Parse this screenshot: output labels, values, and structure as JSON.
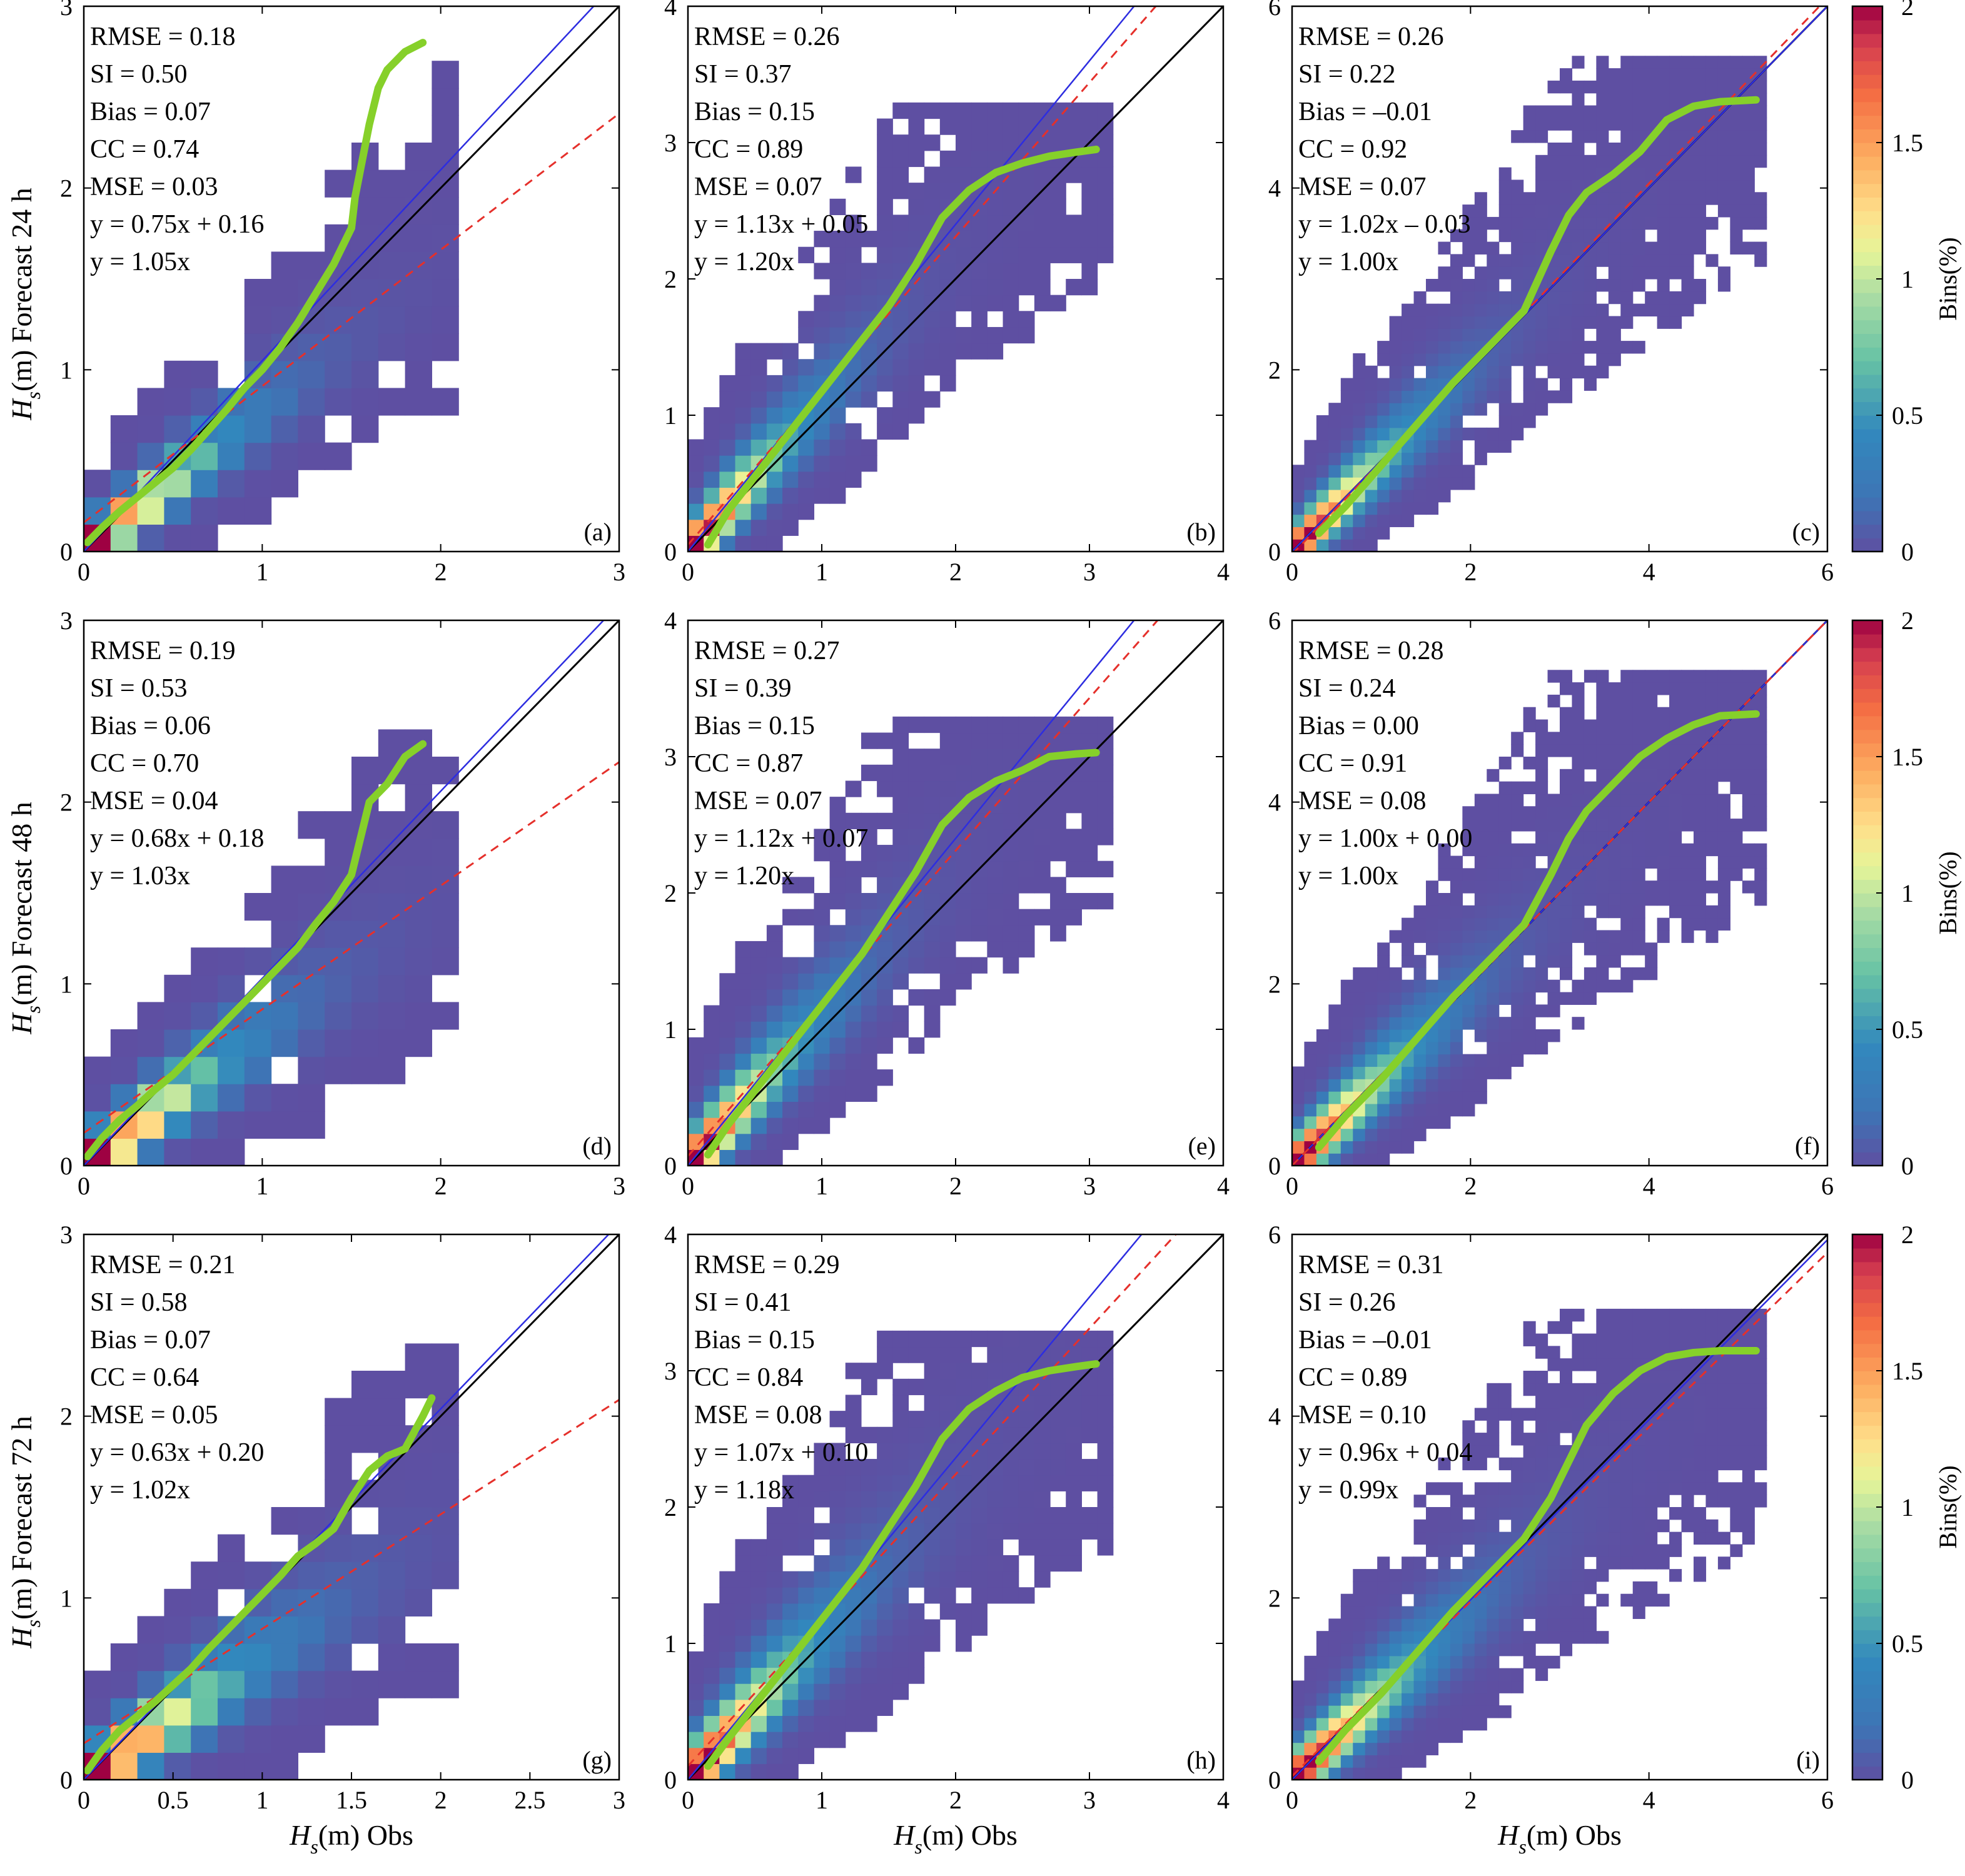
{
  "figure": {
    "xlabel_main": "H",
    "xlabel_sub": "s",
    "xlabel_rest": "(m)  Obs",
    "ylabel_main": "H",
    "ylabel_sub": "s",
    "ylabel_unit": "(m)",
    "colorbar_label": "Bins(%)"
  },
  "chart_data": [
    {
      "type": "heatmap",
      "id": "a",
      "panel_label": "(a)",
      "row_label": "Forecast 24 h",
      "xlim": [
        0,
        3
      ],
      "ylim": [
        0,
        3
      ],
      "xticks": [
        "0",
        "1",
        "2",
        "3"
      ],
      "yticks": [
        "0",
        "1",
        "2",
        "3"
      ],
      "stats": [
        "RMSE = 0.18",
        "SI = 0.50",
        "Bias = 0.07",
        "CC = 0.74",
        "MSE = 0.03",
        "y = 0.75x + 0.16",
        "y = 1.05x"
      ],
      "fit": {
        "slope": 0.75,
        "intercept": 0.16
      },
      "fit_origin": {
        "slope": 1.05
      },
      "reference_slope": 0.8,
      "qq": {
        "x": [
          0.02,
          0.1,
          0.2,
          0.3,
          0.4,
          0.5,
          0.6,
          0.7,
          0.8,
          0.9,
          1.0,
          1.1,
          1.2,
          1.3,
          1.4,
          1.45,
          1.5,
          1.52,
          1.55,
          1.6,
          1.65,
          1.7,
          1.8,
          1.9
        ],
        "y": [
          0.05,
          0.13,
          0.22,
          0.3,
          0.38,
          0.46,
          0.56,
          0.67,
          0.78,
          0.9,
          1.0,
          1.12,
          1.26,
          1.42,
          1.58,
          1.68,
          1.78,
          1.95,
          2.1,
          2.35,
          2.55,
          2.65,
          2.75,
          2.8
        ]
      },
      "cloud": {
        "sx": 0.32,
        "sy": 0.26,
        "tail_x": 2.0,
        "tail_y": 2.6,
        "bins": 20
      }
    },
    {
      "type": "heatmap",
      "id": "b",
      "panel_label": "(b)",
      "row_label": "",
      "xlim": [
        0,
        4
      ],
      "ylim": [
        0,
        4
      ],
      "xticks": [
        "0",
        "1",
        "2",
        "3",
        "4"
      ],
      "yticks": [
        "0",
        "1",
        "2",
        "3",
        "4"
      ],
      "stats": [
        "RMSE = 0.26",
        "SI = 0.37",
        "Bias = 0.15",
        "CC = 0.89",
        "MSE = 0.07",
        "y = 1.13x + 0.05",
        "y = 1.20x"
      ],
      "fit": {
        "slope": 1.13,
        "intercept": 0.05
      },
      "fit_origin": {
        "slope": 1.2
      },
      "reference_slope": 1.15,
      "qq": {
        "x": [
          0.15,
          0.3,
          0.5,
          0.7,
          0.9,
          1.1,
          1.3,
          1.5,
          1.7,
          1.9,
          2.1,
          2.3,
          2.5,
          2.7,
          2.9,
          3.05
        ],
        "y": [
          0.05,
          0.3,
          0.55,
          0.8,
          1.05,
          1.3,
          1.55,
          1.8,
          2.1,
          2.45,
          2.65,
          2.78,
          2.85,
          2.9,
          2.93,
          2.95
        ]
      },
      "cloud": {
        "sx": 0.4,
        "sy": 0.36,
        "tail_x": 3.0,
        "tail_y": 3.0,
        "bins": 34
      }
    },
    {
      "type": "heatmap",
      "id": "c",
      "panel_label": "(c)",
      "row_label": "",
      "xlim": [
        0,
        6
      ],
      "ylim": [
        0,
        6
      ],
      "xticks": [
        "0",
        "2",
        "4",
        "6"
      ],
      "yticks": [
        "0",
        "2",
        "4",
        "6"
      ],
      "stats": [
        "RMSE = 0.26",
        "SI = 0.22",
        "Bias = –0.01",
        "CC = 0.92",
        "MSE = 0.07",
        "y = 1.02x – 0.03",
        "y = 1.00x"
      ],
      "fit": {
        "slope": 1.02,
        "intercept": -0.03
      },
      "fit_origin": {
        "slope": 1.0
      },
      "reference_slope": 1.03,
      "qq": {
        "x": [
          0.3,
          0.6,
          1.0,
          1.4,
          1.8,
          2.2,
          2.6,
          2.9,
          3.1,
          3.3,
          3.6,
          3.9,
          4.2,
          4.5,
          4.8,
          5.2
        ],
        "y": [
          0.2,
          0.5,
          0.95,
          1.4,
          1.85,
          2.25,
          2.65,
          3.3,
          3.7,
          3.95,
          4.15,
          4.4,
          4.75,
          4.9,
          4.95,
          4.97
        ]
      },
      "cloud": {
        "sx": 0.6,
        "sy": 0.5,
        "tail_x": 5.0,
        "tail_y": 5.0,
        "bins": 44
      }
    },
    {
      "type": "heatmap",
      "id": "d",
      "panel_label": "(d)",
      "row_label": "Forecast 48 h",
      "xlim": [
        0,
        3
      ],
      "ylim": [
        0,
        3
      ],
      "xticks": [
        "0",
        "1",
        "2",
        "3"
      ],
      "yticks": [
        "0",
        "1",
        "2",
        "3"
      ],
      "stats": [
        "RMSE = 0.19",
        "SI = 0.53",
        "Bias = 0.06",
        "CC = 0.70",
        "MSE = 0.04",
        "y = 0.68x + 0.18",
        "y = 1.03x"
      ],
      "fit": {
        "slope": 0.68,
        "intercept": 0.18
      },
      "fit_origin": {
        "slope": 1.03
      },
      "reference_slope": 0.75,
      "qq": {
        "x": [
          0.02,
          0.1,
          0.2,
          0.3,
          0.4,
          0.5,
          0.6,
          0.7,
          0.8,
          0.9,
          1.0,
          1.1,
          1.2,
          1.3,
          1.4,
          1.5,
          1.55,
          1.6,
          1.7,
          1.8,
          1.9
        ],
        "y": [
          0.05,
          0.15,
          0.25,
          0.33,
          0.42,
          0.5,
          0.6,
          0.7,
          0.8,
          0.9,
          1.0,
          1.1,
          1.2,
          1.33,
          1.45,
          1.6,
          1.8,
          2.0,
          2.1,
          2.25,
          2.32
        ]
      },
      "cloud": {
        "sx": 0.33,
        "sy": 0.3,
        "tail_x": 2.0,
        "tail_y": 2.4,
        "bins": 20
      }
    },
    {
      "type": "heatmap",
      "id": "e",
      "panel_label": "(e)",
      "row_label": "",
      "xlim": [
        0,
        4
      ],
      "ylim": [
        0,
        4
      ],
      "xticks": [
        "0",
        "1",
        "2",
        "3",
        "4"
      ],
      "yticks": [
        "0",
        "1",
        "2",
        "3",
        "4"
      ],
      "stats": [
        "RMSE = 0.27",
        "SI = 0.39",
        "Bias = 0.15",
        "CC = 0.87",
        "MSE = 0.07",
        "y = 1.12x + 0.07",
        "y = 1.20x"
      ],
      "fit": {
        "slope": 1.12,
        "intercept": 0.07
      },
      "fit_origin": {
        "slope": 1.2
      },
      "reference_slope": 1.15,
      "qq": {
        "x": [
          0.15,
          0.3,
          0.5,
          0.7,
          0.9,
          1.1,
          1.3,
          1.5,
          1.7,
          1.9,
          2.1,
          2.3,
          2.5,
          2.7,
          2.9,
          3.05
        ],
        "y": [
          0.08,
          0.3,
          0.55,
          0.8,
          1.05,
          1.3,
          1.55,
          1.85,
          2.15,
          2.5,
          2.7,
          2.82,
          2.9,
          3.0,
          3.02,
          3.03
        ]
      },
      "cloud": {
        "sx": 0.42,
        "sy": 0.38,
        "tail_x": 3.0,
        "tail_y": 3.0,
        "bins": 34
      }
    },
    {
      "type": "heatmap",
      "id": "f",
      "panel_label": "(f)",
      "row_label": "",
      "xlim": [
        0,
        6
      ],
      "ylim": [
        0,
        6
      ],
      "xticks": [
        "0",
        "2",
        "4",
        "6"
      ],
      "yticks": [
        "0",
        "2",
        "4",
        "6"
      ],
      "stats": [
        "RMSE = 0.28",
        "SI = 0.24",
        "Bias = 0.00",
        "CC = 0.91",
        "MSE = 0.08",
        "y = 1.00x + 0.00",
        "y = 1.00x"
      ],
      "fit": {
        "slope": 1.0,
        "intercept": 0.0
      },
      "fit_origin": {
        "slope": 1.0
      },
      "reference_slope": 1.0,
      "qq": {
        "x": [
          0.3,
          0.6,
          1.0,
          1.4,
          1.8,
          2.2,
          2.6,
          2.9,
          3.1,
          3.3,
          3.6,
          3.9,
          4.2,
          4.5,
          4.8,
          5.2
        ],
        "y": [
          0.2,
          0.55,
          0.95,
          1.4,
          1.85,
          2.25,
          2.65,
          3.2,
          3.6,
          3.9,
          4.2,
          4.5,
          4.7,
          4.85,
          4.95,
          4.97
        ]
      },
      "cloud": {
        "sx": 0.62,
        "sy": 0.55,
        "tail_x": 5.0,
        "tail_y": 5.0,
        "bins": 44
      }
    },
    {
      "type": "heatmap",
      "id": "g",
      "panel_label": "(g)",
      "row_label": "Forecast 72 h",
      "xlim": [
        0,
        3
      ],
      "ylim": [
        0,
        3
      ],
      "xticks": [
        "0",
        "0.5",
        "1",
        "1.5",
        "2",
        "2.5",
        "3"
      ],
      "yticks": [
        "0",
        "1",
        "2",
        "3"
      ],
      "stats": [
        "RMSE = 0.21",
        "SI = 0.58",
        "Bias = 0.07",
        "CC = 0.64",
        "MSE = 0.05",
        "y = 0.63x + 0.20",
        "y = 1.02x"
      ],
      "fit": {
        "slope": 0.63,
        "intercept": 0.2
      },
      "fit_origin": {
        "slope": 1.02
      },
      "reference_slope": 0.7,
      "qq": {
        "x": [
          0.02,
          0.1,
          0.2,
          0.3,
          0.4,
          0.5,
          0.6,
          0.7,
          0.8,
          0.9,
          1.0,
          1.1,
          1.2,
          1.3,
          1.4,
          1.5,
          1.6,
          1.7,
          1.8,
          1.9,
          1.95
        ],
        "y": [
          0.05,
          0.16,
          0.27,
          0.35,
          0.43,
          0.52,
          0.61,
          0.72,
          0.82,
          0.92,
          1.02,
          1.12,
          1.23,
          1.3,
          1.38,
          1.55,
          1.7,
          1.78,
          1.82,
          2.0,
          2.1
        ]
      },
      "cloud": {
        "sx": 0.35,
        "sy": 0.32,
        "tail_x": 2.0,
        "tail_y": 2.2,
        "bins": 20
      }
    },
    {
      "type": "heatmap",
      "id": "h",
      "panel_label": "(h)",
      "row_label": "",
      "xlim": [
        0,
        4
      ],
      "ylim": [
        0,
        4
      ],
      "xticks": [
        "0",
        "1",
        "2",
        "3",
        "4"
      ],
      "yticks": [
        "0",
        "1",
        "2",
        "3",
        "4"
      ],
      "stats": [
        "RMSE = 0.29",
        "SI = 0.41",
        "Bias = 0.15",
        "CC = 0.84",
        "MSE = 0.08",
        "y = 1.07x + 0.10",
        "y = 1.18x"
      ],
      "fit": {
        "slope": 1.07,
        "intercept": 0.1
      },
      "fit_origin": {
        "slope": 1.18
      },
      "reference_slope": 1.12,
      "qq": {
        "x": [
          0.15,
          0.3,
          0.5,
          0.7,
          0.9,
          1.1,
          1.3,
          1.5,
          1.7,
          1.9,
          2.1,
          2.3,
          2.5,
          2.7,
          2.9,
          3.05
        ],
        "y": [
          0.1,
          0.3,
          0.55,
          0.8,
          1.05,
          1.3,
          1.55,
          1.85,
          2.15,
          2.5,
          2.72,
          2.85,
          2.95,
          3.0,
          3.03,
          3.05
        ]
      },
      "cloud": {
        "sx": 0.45,
        "sy": 0.42,
        "tail_x": 3.0,
        "tail_y": 3.0,
        "bins": 34
      }
    },
    {
      "type": "heatmap",
      "id": "i",
      "panel_label": "(i)",
      "row_label": "",
      "xlim": [
        0,
        6
      ],
      "ylim": [
        0,
        6
      ],
      "xticks": [
        "0",
        "2",
        "4",
        "6"
      ],
      "yticks": [
        "0",
        "2",
        "4",
        "6"
      ],
      "stats": [
        "RMSE = 0.31",
        "SI = 0.26",
        "Bias = –0.01",
        "CC = 0.89",
        "MSE = 0.10",
        "y = 0.96x + 0.04",
        "y = 0.99x"
      ],
      "fit": {
        "slope": 0.96,
        "intercept": 0.04
      },
      "fit_origin": {
        "slope": 0.99
      },
      "reference_slope": 0.97,
      "qq": {
        "x": [
          0.3,
          0.6,
          1.0,
          1.4,
          1.8,
          2.2,
          2.6,
          2.9,
          3.1,
          3.3,
          3.6,
          3.9,
          4.2,
          4.5,
          4.8,
          5.2
        ],
        "y": [
          0.2,
          0.55,
          0.95,
          1.4,
          1.85,
          2.25,
          2.65,
          3.1,
          3.5,
          3.9,
          4.25,
          4.5,
          4.65,
          4.7,
          4.72,
          4.72
        ]
      },
      "cloud": {
        "sx": 0.65,
        "sy": 0.58,
        "tail_x": 5.0,
        "tail_y": 4.8,
        "bins": 44
      }
    }
  ],
  "colorbars": [
    {
      "min": 0,
      "max": 2,
      "ticks": [
        "0",
        "0.5",
        "1",
        "1.5",
        "2"
      ]
    },
    {
      "min": 0,
      "max": 2,
      "ticks": [
        "0",
        "0.5",
        "1",
        "1.5",
        "2"
      ]
    },
    {
      "min": 0,
      "max": 2,
      "ticks": [
        "0",
        "0.5",
        "1",
        "1.5",
        "2"
      ]
    }
  ]
}
